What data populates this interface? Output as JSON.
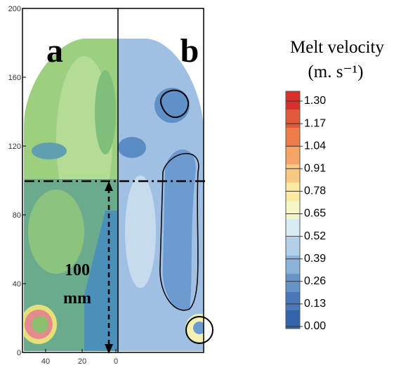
{
  "figure": {
    "panels": [
      "a",
      "b"
    ],
    "y_ticks": [
      "0",
      "40",
      "80",
      "120",
      "160",
      "200"
    ],
    "x_ticks": [
      "40",
      "20",
      "0"
    ],
    "annotation": [
      "100",
      "mm"
    ],
    "legend": {
      "title": "Melt velocity",
      "unit": "(m. s⁻¹)",
      "levels": [
        "1.30",
        "1.17",
        "1.04",
        "0.91",
        "0.78",
        "0.65",
        "0.52",
        "0.39",
        "0.26",
        "0.13",
        "0.00"
      ]
    }
  }
}
